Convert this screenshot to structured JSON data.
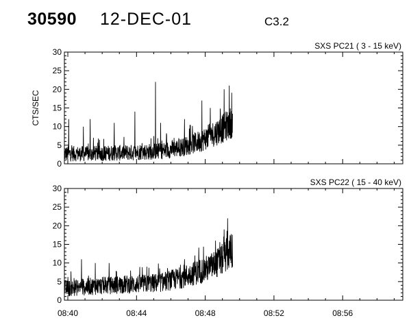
{
  "header": {
    "event_id": "30590",
    "date": "12-DEC-01",
    "flare_class": "C3.2"
  },
  "chart_data": [
    {
      "type": "line",
      "title": "SXS PC21  (  3 - 15 keV)",
      "ylabel": "CTS/SEC",
      "xlabel": "",
      "ylim": [
        0,
        30
      ],
      "yticks": [
        "0",
        "5",
        "10",
        "15",
        "20",
        "25",
        "30"
      ],
      "xlim": [
        "08:39.8",
        "08:59.5"
      ],
      "xticks": [
        "08:40",
        "08:44",
        "08:48",
        "08:52",
        "08:56"
      ],
      "grid": false,
      "series": [
        {
          "x_minutes_after_0840": [
            -0.2,
            0.2,
            0.6,
            1.0,
            1.4,
            1.8,
            2.2,
            2.6,
            3.0,
            3.4,
            3.8,
            4.2,
            4.6,
            5.0,
            5.4,
            5.8,
            6.2,
            6.6,
            7.0,
            7.4,
            7.8,
            8.2,
            8.6,
            9.0,
            9.3,
            9.6
          ],
          "baseline": [
            2.5,
            2.5,
            2.5,
            2.5,
            2.5,
            2.6,
            2.6,
            2.7,
            2.7,
            2.8,
            2.8,
            3.0,
            3.0,
            3.1,
            3.2,
            3.5,
            3.8,
            4.2,
            4.7,
            5.3,
            6.0,
            7.0,
            8.0,
            9.0,
            10.0,
            11.0
          ],
          "spikes": [
            [
              0.05,
              12
            ],
            [
              0.9,
              10
            ],
            [
              1.3,
              12
            ],
            [
              2.7,
              11
            ],
            [
              3.9,
              14
            ],
            [
              5.1,
              22
            ],
            [
              5.4,
              11
            ],
            [
              6.8,
              12
            ],
            [
              7.8,
              17
            ],
            [
              8.3,
              15
            ],
            [
              9.1,
              20
            ],
            [
              9.4,
              21
            ]
          ]
        }
      ]
    },
    {
      "type": "line",
      "title": "SXS PC22  ( 15 - 40 keV)",
      "ylabel": "",
      "xlabel": "",
      "ylim": [
        0,
        30
      ],
      "yticks": [
        "0",
        "5",
        "10",
        "15",
        "20",
        "25",
        "30"
      ],
      "xlim": [
        "08:39.8",
        "08:59.5"
      ],
      "xticks": [
        "08:40",
        "08:44",
        "08:48",
        "08:52",
        "08:56"
      ],
      "grid": false,
      "series": [
        {
          "x_minutes_after_0840": [
            -0.2,
            0.2,
            0.6,
            1.0,
            1.4,
            1.8,
            2.2,
            2.6,
            3.0,
            3.4,
            3.8,
            4.2,
            4.6,
            5.0,
            5.4,
            5.8,
            6.2,
            6.6,
            7.0,
            7.4,
            7.8,
            8.2,
            8.6,
            9.0,
            9.3,
            9.6
          ],
          "baseline": [
            3.0,
            3.0,
            3.2,
            3.3,
            3.5,
            3.6,
            3.7,
            3.8,
            3.9,
            4.0,
            4.0,
            4.1,
            4.2,
            4.3,
            4.5,
            4.9,
            5.3,
            5.8,
            6.4,
            7.0,
            7.6,
            8.3,
            9.3,
            10.5,
            12.0,
            13.0
          ],
          "spikes": [
            [
              0.8,
              11
            ],
            [
              1.6,
              10
            ],
            [
              2.4,
              10
            ],
            [
              4.6,
              9
            ],
            [
              6.8,
              11
            ],
            [
              7.4,
              12
            ],
            [
              8.6,
              16
            ],
            [
              9.1,
              19
            ],
            [
              9.3,
              22
            ],
            [
              9.6,
              21
            ]
          ]
        }
      ]
    }
  ]
}
